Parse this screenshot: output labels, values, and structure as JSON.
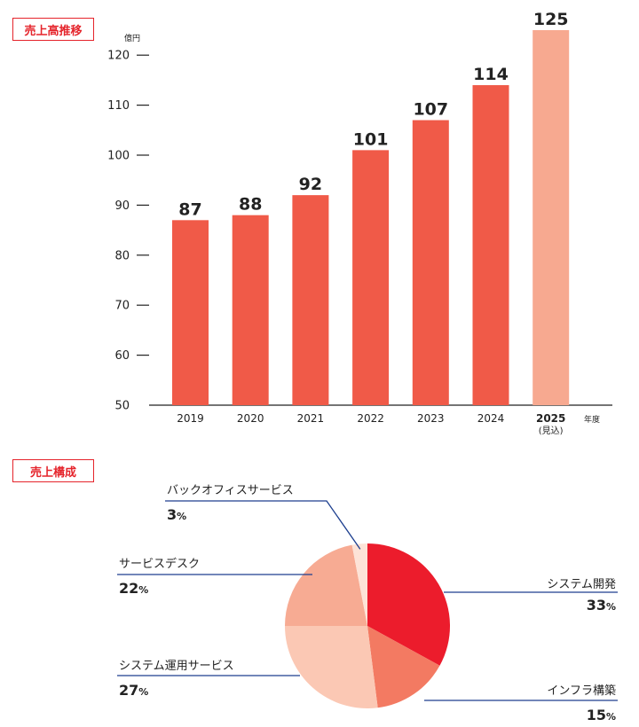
{
  "sections": {
    "sales_trend_tag": "売上高推移",
    "composition_tag": "売上構成"
  },
  "chart_data": [
    {
      "type": "bar",
      "title": "売上高推移",
      "unit": "億円",
      "xlabel": "年度",
      "ylim": [
        50,
        125
      ],
      "yticks": [
        50,
        60,
        70,
        80,
        90,
        100,
        110,
        120
      ],
      "categories": [
        "2019",
        "2020",
        "2021",
        "2022",
        "2023",
        "2024",
        "2025"
      ],
      "category_notes": [
        "",
        "",
        "",
        "",
        "",
        "",
        "(見込)"
      ],
      "values": [
        87,
        88,
        92,
        101,
        107,
        114,
        125
      ],
      "colors": [
        "#f05a48",
        "#f05a48",
        "#f05a48",
        "#f05a48",
        "#f05a48",
        "#f05a48",
        "#f7a990"
      ],
      "grid": false
    },
    {
      "type": "pie",
      "title": "売上構成",
      "slices": [
        {
          "name": "システム開発",
          "value": 33,
          "color": "#ec1c2c"
        },
        {
          "name": "インフラ構築",
          "value": 15,
          "color": "#f37a62"
        },
        {
          "name": "システム運用サービス",
          "value": 27,
          "color": "#fbc8b4"
        },
        {
          "name": "サービスデスク",
          "value": 22,
          "color": "#f7ab93"
        },
        {
          "name": "バックオフィスサービス",
          "value": 3,
          "color": "#fde3d7"
        }
      ],
      "percent_unit": "%",
      "leader_color": "#1d3f8f"
    }
  ]
}
